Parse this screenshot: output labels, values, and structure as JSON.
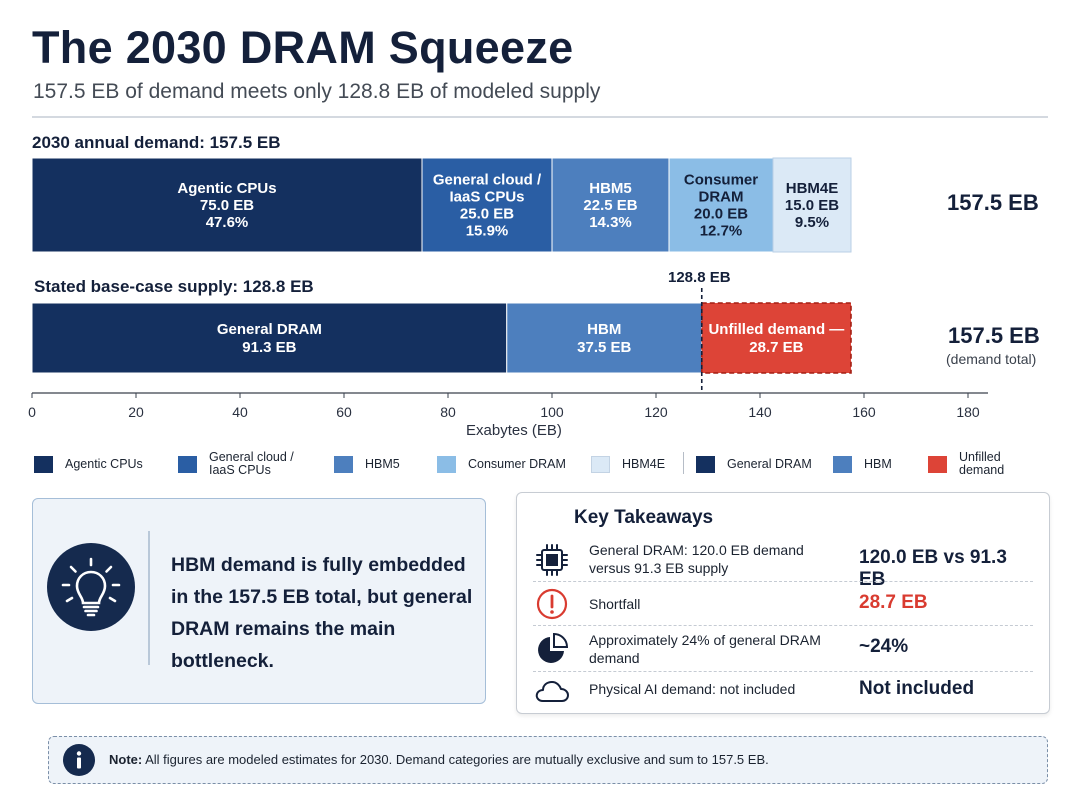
{
  "header": {
    "title": "The 2030 DRAM Squeeze",
    "subtitle": "157.5 EB of demand meets only 128.8 EB of modeled supply"
  },
  "chart_data": {
    "type": "bar",
    "orientation": "horizontal-stacked",
    "xlabel": "Exabytes (EB)",
    "xlim": [
      0,
      180
    ],
    "xticks": [
      0,
      20,
      40,
      60,
      80,
      100,
      120,
      140,
      160,
      180
    ],
    "rows": [
      {
        "heading": "2030 annual demand: 157.5 EB",
        "total_label": "157.5 EB",
        "total_note": "",
        "segments": [
          {
            "name": "Agentic CPUs",
            "label_lines": [
              "Agentic CPUs",
              "75.0 EB",
              "47.6%"
            ],
            "value": 75.0,
            "color": "#14305f",
            "text_color": "#ffffff"
          },
          {
            "name": "General cloud / IaaS CPUs",
            "label_lines": [
              "General cloud /",
              "IaaS CPUs",
              "25.0 EB",
              "15.9%"
            ],
            "value": 25.0,
            "color": "#2a5ea4",
            "text_color": "#ffffff"
          },
          {
            "name": "HBM5",
            "label_lines": [
              "HBM5",
              "22.5 EB",
              "14.3%"
            ],
            "value": 22.5,
            "color": "#4d7fbe",
            "text_color": "#ffffff"
          },
          {
            "name": "Consumer DRAM",
            "label_lines": [
              "Consumer",
              "DRAM",
              "20.0 EB",
              "12.7%"
            ],
            "value": 20.0,
            "color": "#8bbde6",
            "text_color": "#14203a"
          },
          {
            "name": "HBM4E",
            "label_lines": [
              "HBM4E",
              "15.0 EB",
              "9.5%"
            ],
            "value": 15.0,
            "color": "#dbe9f6",
            "text_color": "#14203a"
          }
        ]
      },
      {
        "heading": "Stated base-case supply: 128.8 EB",
        "total_label": "157.5 EB",
        "total_note": "(demand total)",
        "segments": [
          {
            "name": "General DRAM",
            "label_lines": [
              "General DRAM",
              "91.3 EB"
            ],
            "value": 91.3,
            "color": "#14305f",
            "text_color": "#ffffff"
          },
          {
            "name": "HBM",
            "label_lines": [
              "HBM",
              "37.5 EB"
            ],
            "value": 37.5,
            "color": "#4d7fbe",
            "text_color": "#ffffff"
          },
          {
            "name": "Unfilled demand",
            "label_lines": [
              "Unfilled demand —",
              "28.7 EB"
            ],
            "value": 28.7,
            "color": "#dd4437",
            "text_color": "#ffffff",
            "dashed": true
          }
        ]
      }
    ],
    "marker": {
      "value": 128.8,
      "label": "128.8 EB"
    }
  },
  "legend": [
    {
      "label": "Agentic CPUs",
      "color": "#14305f"
    },
    {
      "label": "General cloud /\nIaaS CPUs",
      "color": "#2a5ea4"
    },
    {
      "label": "HBM5",
      "color": "#4d7fbe"
    },
    {
      "label": "Consumer DRAM",
      "color": "#8bbde6"
    },
    {
      "label": "HBM4E",
      "color": "#dbe9f6"
    },
    {
      "label": "General DRAM",
      "color": "#14305f"
    },
    {
      "label": "HBM",
      "color": "#4d7fbe"
    },
    {
      "label": "Unfilled demand",
      "color": "#dd4437"
    }
  ],
  "insight": {
    "icon": "lightbulb-icon",
    "text": "HBM demand is fully embedded in the 157.5 EB total, but general DRAM remains the main bottleneck."
  },
  "takeaways": {
    "title": "Key Takeaways",
    "items": [
      {
        "icon": "chip-icon",
        "desc": "General DRAM: 120.0 EB demand versus 91.3 EB supply",
        "value": "120.0 EB vs 91.3 EB",
        "value_color": "#14203a"
      },
      {
        "icon": "alert-icon",
        "desc": "Shortfall",
        "value": "28.7 EB",
        "value_color": "#d93b30"
      },
      {
        "icon": "pie-chart-icon",
        "desc": "Approximately 24% of general DRAM demand",
        "value": "~24%",
        "value_color": "#14203a"
      },
      {
        "icon": "cloud-icon",
        "desc": "Physical AI demand: not included",
        "value": "Not included",
        "value_color": "#14203a"
      }
    ]
  },
  "note": {
    "icon": "info-icon",
    "lead": "Note:",
    "text": "All figures are modeled estimates for 2030. Demand categories are mutually exclusive and sum to 157.5 EB."
  }
}
